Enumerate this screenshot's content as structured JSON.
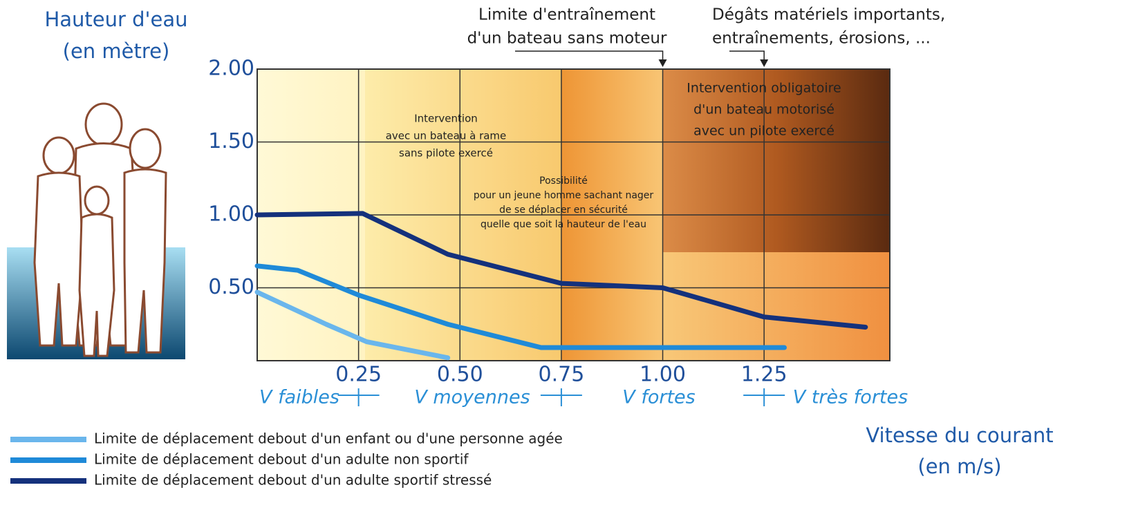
{
  "chart_data": {
    "type": "line",
    "y_title": [
      "Hauteur d'eau",
      "(en mètre)"
    ],
    "x_title": [
      "Vitesse du courant",
      "(en m/s)"
    ],
    "xlim": [
      0,
      1.56
    ],
    "ylim": [
      0,
      2
    ],
    "xticks": [
      0.25,
      {
        "value": 0.5,
        "label": "0.50"
      },
      0.75,
      {
        "value": 1,
        "label": "1.00"
      },
      1.25
    ],
    "yticks": [
      {
        "value": 0.5,
        "label": "0.50"
      },
      {
        "value": 1,
        "label": "1.00"
      },
      {
        "value": 1.5,
        "label": "1.50"
      },
      {
        "value": 2,
        "label": "2.00"
      }
    ],
    "grid": true,
    "zones": [
      "V faibles",
      "V moyennes",
      "V fortes",
      "V très fortes"
    ],
    "zone_edges": [
      0.25,
      0.75,
      1.25
    ],
    "top_annotations": [
      {
        "lines": [
          "Limite d'entraînement",
          "d'un bateau sans moteur"
        ],
        "x": 1
      },
      {
        "lines": [
          "Dégâts matériels importants,",
          "entraînements, érosions, ..."
        ],
        "x": 1.25
      }
    ],
    "notes": [
      {
        "lines": [
          "Intervention",
          "avec un bateau à rame",
          "sans pilote exercé"
        ]
      },
      {
        "lines": [
          "Possibilité",
          "pour un jeune homme sachant nager",
          "de se déplacer en sécurité",
          "quelle que soit la hauteur de l'eau"
        ]
      },
      {
        "lines": [
          "Intervention obligatoire",
          "d'un bateau motorisé",
          "avec un pilote exercé"
        ]
      }
    ],
    "series": [
      {
        "name": "Limite de déplacement debout d'un enfant ou d'une personne agée",
        "color": "#6ab6ec",
        "x": [
          0,
          0.17,
          0.27,
          0.47
        ],
        "values": [
          0.47,
          0.25,
          0.13,
          0.02
        ]
      },
      {
        "name": "Limite de déplacement debout d'un adulte non sportif",
        "color": "#1f8ad8",
        "x": [
          0,
          0.1,
          0.25,
          0.47,
          0.7,
          1.3
        ],
        "values": [
          0.65,
          0.62,
          0.45,
          0.25,
          0.09,
          0.09
        ]
      },
      {
        "name": "Limite de déplacement debout d'un adulte sportif stressé",
        "color": "#14317c",
        "x": [
          0,
          0.26,
          0.47,
          0.75,
          1,
          1.25,
          1.5
        ],
        "values": [
          1,
          1.01,
          0.73,
          0.53,
          0.5,
          0.3,
          0.23
        ]
      }
    ]
  }
}
